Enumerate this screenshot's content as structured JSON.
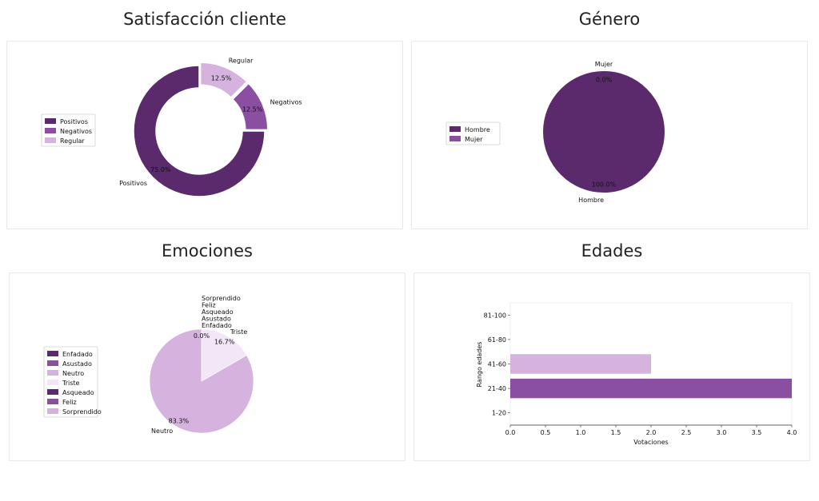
{
  "colors": {
    "dark": "#5a2a6c",
    "mid": "#8a4fa0",
    "light": "#d5b3de",
    "pale": "#f3e6f7"
  },
  "charts": {
    "satisfaction": {
      "title": "Satisfacción cliente"
    },
    "gender": {
      "title": "Género"
    },
    "emotions": {
      "title": "Emociones"
    },
    "ages": {
      "title": "Edades"
    }
  },
  "chart_data": [
    {
      "type": "pie",
      "variant": "donut",
      "title": "Satisfacción cliente",
      "categories": [
        "Positivos",
        "Negativos",
        "Regular"
      ],
      "values": [
        75.0,
        12.5,
        12.5
      ],
      "value_labels": [
        "75.0%",
        "12.5%",
        "12.5%"
      ],
      "colors": [
        "#5a2a6c",
        "#8a4fa0",
        "#d5b3de"
      ],
      "exploded": [
        "Negativos",
        "Regular"
      ],
      "legend": [
        "Positivos",
        "Negativos",
        "Regular"
      ],
      "legend_position": "left"
    },
    {
      "type": "pie",
      "title": "Género",
      "categories": [
        "Hombre",
        "Mujer"
      ],
      "values": [
        100.0,
        0.0
      ],
      "value_labels": [
        "100.0%",
        "0.0%"
      ],
      "colors": [
        "#5a2a6c",
        "#8a4fa0"
      ],
      "legend": [
        "Hombre",
        "Mujer"
      ],
      "legend_position": "left"
    },
    {
      "type": "pie",
      "title": "Emociones",
      "categories": [
        "Enfadado",
        "Asustado",
        "Neutro",
        "Triste",
        "Asqueado",
        "Feliz",
        "Sorprendido"
      ],
      "values": [
        0.0,
        0.0,
        83.3,
        16.7,
        0.0,
        0.0,
        0.0
      ],
      "value_labels": [
        "0.0%",
        "",
        "83.3%",
        "16.7%",
        "",
        "",
        ""
      ],
      "colors": [
        "#5a2a6c",
        "#8a4fa0",
        "#d5b3de",
        "#f3e6f7",
        "#5a2a6c",
        "#8a4fa0",
        "#d5b3de"
      ],
      "legend": [
        "Enfadado",
        "Asustado",
        "Neutro",
        "Triste",
        "Asqueado",
        "Feliz",
        "Sorprendido"
      ],
      "legend_position": "left",
      "stacked_outside_labels": [
        "Sorprendido",
        "Feliz",
        "Asqueado",
        "Asustado",
        "Enfadado"
      ]
    },
    {
      "type": "bar",
      "orientation": "horizontal",
      "title": "Edades",
      "categories": [
        "1-20",
        "21-40",
        "41-60",
        "61-80",
        "81-100"
      ],
      "values": [
        0,
        4,
        2,
        0,
        0
      ],
      "colors": [
        "#8a4fa0",
        "#8a4fa0",
        "#d5b3de",
        "#d5b3de",
        "#d5b3de"
      ],
      "xlabel": "Votaciones",
      "ylabel": "Rango edades",
      "xlim": [
        0,
        4
      ],
      "xticks": [
        "0.0",
        "0.5",
        "1.0",
        "1.5",
        "2.0",
        "2.5",
        "3.0",
        "3.5",
        "4.0"
      ],
      "grid": false
    }
  ]
}
